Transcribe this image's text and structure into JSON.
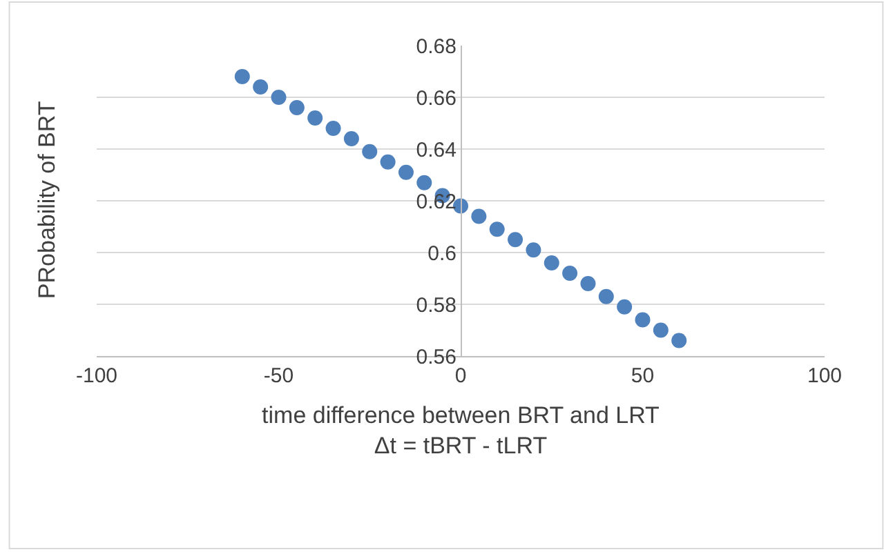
{
  "chart_data": {
    "type": "scatter",
    "xlabel": "time difference between BRT and LRT\nΔt = tBRT - tLRT",
    "ylabel": "PRobability of BRT",
    "x": [
      -60,
      -55,
      -50,
      -45,
      -40,
      -35,
      -30,
      -25,
      -20,
      -15,
      -10,
      -5,
      0,
      5,
      10,
      15,
      20,
      25,
      30,
      35,
      40,
      45,
      50,
      55,
      60
    ],
    "series": [
      {
        "color": "#4f81bd",
        "values": [
          0.668,
          0.664,
          0.66,
          0.656,
          0.652,
          0.648,
          0.644,
          0.639,
          0.635,
          0.631,
          0.627,
          0.622,
          0.618,
          0.614,
          0.609,
          0.605,
          0.601,
          0.596,
          0.592,
          0.588,
          0.583,
          0.579,
          0.574,
          0.57,
          0.566
        ]
      }
    ],
    "xlim": [
      -100,
      100
    ],
    "xticks": [
      -100,
      -50,
      0,
      50,
      100
    ],
    "ylim": [
      0.56,
      0.68
    ],
    "yticks": [
      {
        "value": 0.56,
        "label": "0.56"
      },
      {
        "value": 0.58,
        "label": "0.58"
      },
      {
        "value": 0.6,
        "label": "0.6"
      },
      {
        "value": 0.62,
        "label": "0.62"
      },
      {
        "value": 0.64,
        "label": "0.64"
      },
      {
        "value": 0.66,
        "label": "0.66"
      },
      {
        "value": 0.68,
        "label": "0.68"
      }
    ],
    "grid": "y",
    "marker": "circle"
  }
}
